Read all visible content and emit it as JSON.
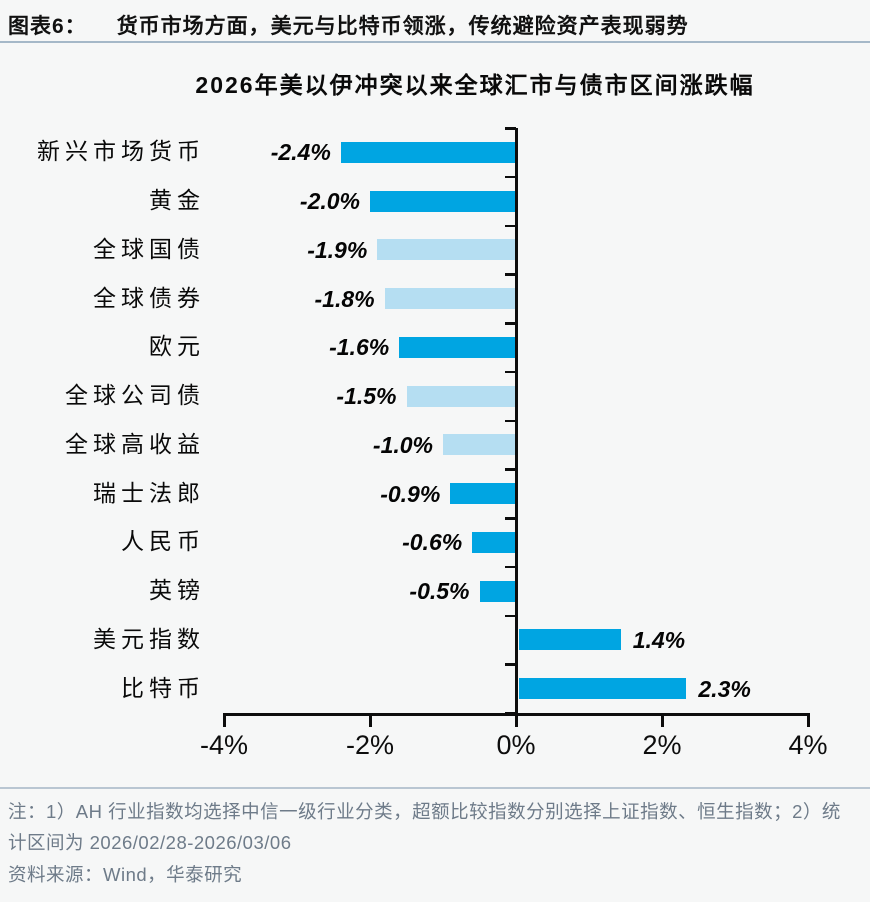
{
  "header": {
    "tag": "图表6：",
    "title": "货币市场方面，美元与比特币领涨，传统避险资产表现弱势"
  },
  "chart_data": {
    "type": "bar",
    "orientation": "horizontal",
    "title": "2026年美以伊冲突以来全球汇市与债市区间涨跌幅",
    "categories": [
      "新兴市场货币",
      "黄金",
      "全球国债",
      "全球债券",
      "欧元",
      "全球公司债",
      "全球高收益",
      "瑞士法郎",
      "人民币",
      "英镑",
      "美元指数",
      "比特币"
    ],
    "values": [
      -2.4,
      -2.0,
      -1.9,
      -1.8,
      -1.6,
      -1.5,
      -1.0,
      -0.9,
      -0.6,
      -0.5,
      1.4,
      2.3
    ],
    "value_labels": [
      "-2.4%",
      "-2.0%",
      "-1.9%",
      "-1.8%",
      "-1.6%",
      "-1.5%",
      "-1.0%",
      "-0.9%",
      "-0.6%",
      "-0.5%",
      "1.4%",
      "2.3%"
    ],
    "bar_styles": [
      "strong",
      "strong",
      "muted",
      "muted",
      "strong",
      "muted",
      "muted",
      "strong",
      "strong",
      "strong",
      "strong",
      "strong"
    ],
    "colors": {
      "strong": "#00a5e2",
      "muted": "#b5def2"
    },
    "xlim": [
      -4,
      4
    ],
    "x_tick_labels": [
      "-4%",
      "-2%",
      "0%",
      "2%",
      "4%"
    ],
    "x_tick_values": [
      -4,
      -2,
      0,
      2,
      4
    ],
    "grid": false,
    "legend": "none",
    "value_label_position": "outside-end"
  },
  "footer": {
    "note": "注：1）AH 行业指数均选择中信一级行业分类，超额比较指数分别选择上证指数、恒生指数；2）统计区间为 2026/02/28-2026/03/06",
    "source": "资料来源：Wind，华泰研究"
  }
}
